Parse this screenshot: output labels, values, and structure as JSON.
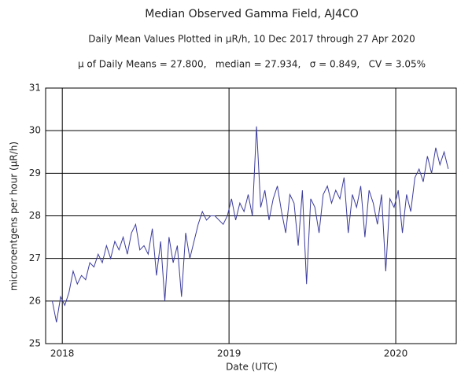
{
  "chart_data": {
    "type": "line",
    "title": "Median Observed Gamma Field, AJ4CO",
    "subtitle": "Daily Mean Values Plotted in μR/h, 10 Dec 2017 through 27 Apr 2020",
    "annotation": "μ of Daily Means = 27.800,   median = 27.934,   σ = 0.849,   CV = 3.05%",
    "x_label": "Date (UTC)",
    "y_label": "microroentgens per hour (μR/h)",
    "xlim": [
      2017.9,
      2020.363
    ],
    "xticks": [
      2018,
      2019,
      2020
    ],
    "ylim": [
      25,
      31
    ],
    "yticks": [
      25,
      26,
      27,
      28,
      29,
      30,
      31
    ],
    "grid": true,
    "x": [
      2017.94,
      2017.965,
      2017.99,
      2018.015,
      2018.04,
      2018.065,
      2018.09,
      2018.115,
      2018.14,
      2018.165,
      2018.19,
      2018.215,
      2018.24,
      2018.265,
      2018.29,
      2018.315,
      2018.34,
      2018.365,
      2018.39,
      2018.415,
      2018.44,
      2018.465,
      2018.49,
      2018.515,
      2018.54,
      2018.565,
      2018.59,
      2018.615,
      2018.64,
      2018.665,
      2018.69,
      2018.715,
      2018.74,
      2018.765,
      2018.79,
      2018.815,
      2018.84,
      2018.865,
      2018.89,
      2018.915,
      2018.94,
      2018.965,
      2018.99,
      2019.015,
      2019.04,
      2019.065,
      2019.09,
      2019.115,
      2019.14,
      2019.165,
      2019.19,
      2019.215,
      2019.24,
      2019.265,
      2019.29,
      2019.315,
      2019.34,
      2019.365,
      2019.39,
      2019.415,
      2019.44,
      2019.465,
      2019.49,
      2019.515,
      2019.54,
      2019.565,
      2019.59,
      2019.615,
      2019.64,
      2019.665,
      2019.69,
      2019.715,
      2019.74,
      2019.765,
      2019.79,
      2019.815,
      2019.84,
      2019.865,
      2019.89,
      2019.915,
      2019.94,
      2019.965,
      2019.99,
      2020.015,
      2020.04,
      2020.065,
      2020.09,
      2020.115,
      2020.14,
      2020.165,
      2020.19,
      2020.215,
      2020.24,
      2020.265,
      2020.29,
      2020.315
    ],
    "series": [
      {
        "color": "#3b3b9c",
        "values": [
          26.0,
          25.5,
          26.1,
          25.9,
          26.2,
          26.7,
          26.4,
          26.6,
          26.5,
          26.9,
          26.8,
          27.1,
          26.9,
          27.3,
          27.0,
          27.4,
          27.2,
          27.5,
          27.1,
          27.6,
          27.8,
          27.2,
          27.3,
          27.1,
          27.7,
          26.6,
          27.4,
          26.0,
          27.5,
          26.9,
          27.3,
          26.1,
          27.6,
          27.0,
          27.4,
          27.8,
          28.1,
          27.9,
          28.0,
          28.0,
          27.9,
          27.8,
          28.0,
          28.4,
          27.9,
          28.3,
          28.1,
          28.5,
          28.0,
          30.1,
          28.2,
          28.6,
          27.9,
          28.4,
          28.7,
          28.1,
          27.6,
          28.5,
          28.3,
          27.3,
          28.6,
          26.4,
          28.4,
          28.2,
          27.6,
          28.5,
          28.7,
          28.3,
          28.6,
          28.4,
          28.9,
          27.6,
          28.5,
          28.2,
          28.7,
          27.5,
          28.6,
          28.3,
          27.8,
          28.5,
          26.7,
          28.4,
          28.2,
          28.6,
          27.6,
          28.5,
          28.1,
          28.9,
          29.1,
          28.8,
          29.4,
          29.0,
          29.6,
          29.2,
          29.5,
          29.1
        ]
      }
    ]
  }
}
